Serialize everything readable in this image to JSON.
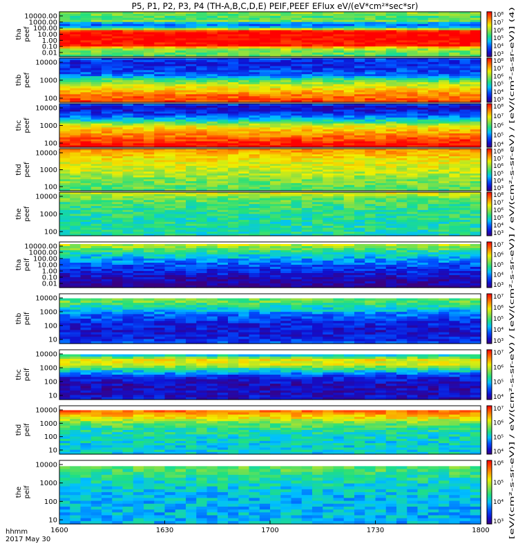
{
  "title": "P5, P1, P2, P3, P4 (TH-A,B,C,D,E) PEIF,PEEF EFlux eV/(eV*cm²*sec*sr)",
  "footer": {
    "time_label": "hhmm",
    "date_label": "2017 May 30"
  },
  "side_label": "[eV/(cm²-s-sr-eV)] / eV/(cm²-s-sr-eV) / [eV/(cm²-s-sr-eV)] / eV/(cm²-s-sr-eV) / [eV/(cm²-s-sr-eV)] (4)",
  "chart_data": [
    {
      "type": "heatmap",
      "panel": "tha peef",
      "ylabel": "tha peef",
      "y_ticks": [
        "10000.00",
        "1000.00",
        "100.00",
        "10.00",
        "1.00",
        "0.10",
        "0.01"
      ],
      "x_ticks": [
        "1600",
        "1630",
        "1700",
        "1730",
        "1800"
      ],
      "colorbar_ticks": [
        "10⁸",
        "10⁷",
        "10⁶",
        "10⁵",
        "10⁴",
        "10³"
      ],
      "profile": [
        [
          0.0,
          6.0
        ],
        [
          0.04,
          5.9
        ],
        [
          0.12,
          5.6
        ],
        [
          0.2,
          5.9
        ],
        [
          0.28,
          4.2
        ],
        [
          0.36,
          5.0
        ],
        [
          0.44,
          8.5
        ],
        [
          0.56,
          8.5
        ],
        [
          0.68,
          8.4
        ],
        [
          0.76,
          8.3
        ],
        [
          0.82,
          6.2
        ],
        [
          0.9,
          5.8
        ],
        [
          1.0,
          5.6
        ]
      ],
      "bg_blank": [
        0,
        0.02
      ]
    },
    {
      "type": "heatmap",
      "panel": "thb peef",
      "ylabel": "thb peef",
      "y_ticks": [
        "10000",
        "1000",
        "100"
      ],
      "x_ticks": [
        "1600",
        "1630",
        "1700",
        "1730",
        "1800"
      ],
      "colorbar_ticks": [
        "10⁸",
        "10⁷",
        "10⁶",
        "10⁵",
        "10⁴",
        "10³"
      ],
      "profile": [
        [
          0.0,
          4.2
        ],
        [
          0.1,
          3.8
        ],
        [
          0.2,
          3.9
        ],
        [
          0.3,
          4.1
        ],
        [
          0.4,
          4.4
        ],
        [
          0.5,
          5.6
        ],
        [
          0.58,
          6.2
        ],
        [
          0.66,
          6.6
        ],
        [
          0.74,
          7.0
        ],
        [
          0.84,
          7.6
        ],
        [
          1.0,
          8.0
        ]
      ]
    },
    {
      "type": "heatmap",
      "panel": "thc peef",
      "ylabel": "thc peef",
      "y_ticks": [
        "10000",
        "1000",
        "100"
      ],
      "x_ticks": [
        "1600",
        "1630",
        "1700",
        "1730",
        "1800"
      ],
      "colorbar_ticks": [
        "10⁸",
        "10⁷",
        "10⁶",
        "10⁵",
        "10⁴"
      ],
      "profile": [
        [
          0.0,
          4.4
        ],
        [
          0.08,
          3.4
        ],
        [
          0.18,
          3.8
        ],
        [
          0.28,
          4.2
        ],
        [
          0.4,
          5.2
        ],
        [
          0.5,
          6.4
        ],
        [
          0.6,
          7.0
        ],
        [
          0.7,
          7.4
        ],
        [
          0.8,
          7.8
        ],
        [
          0.9,
          8.2
        ],
        [
          1.0,
          8.4
        ]
      ]
    },
    {
      "type": "heatmap",
      "panel": "thd peef",
      "ylabel": "thd peef",
      "y_ticks": [
        "10000",
        "1000",
        "100"
      ],
      "x_ticks": [
        "1600",
        "1630",
        "1700",
        "1730",
        "1800"
      ],
      "colorbar_ticks": [
        "10⁸",
        "10⁷",
        "10⁶",
        "10⁵",
        "10⁴",
        "10³"
      ],
      "profile": [
        [
          0.0,
          7.4
        ],
        [
          0.15,
          7.0
        ],
        [
          0.3,
          6.6
        ],
        [
          0.5,
          6.4
        ],
        [
          0.7,
          6.0
        ],
        [
          0.85,
          5.8
        ],
        [
          1.0,
          5.6
        ]
      ]
    },
    {
      "type": "heatmap",
      "panel": "the peef",
      "ylabel": "the peef",
      "y_ticks": [
        "10000",
        "1000",
        "100"
      ],
      "x_ticks": [
        "1600",
        "1630",
        "1700",
        "1730",
        "1800"
      ],
      "colorbar_ticks": [
        "10⁸",
        "10⁷",
        "10⁶",
        "10⁵",
        "10⁴",
        "10³"
      ],
      "profile": [
        [
          0.0,
          6.6
        ],
        [
          0.1,
          6.0
        ],
        [
          0.25,
          5.6
        ],
        [
          0.45,
          5.4
        ],
        [
          0.65,
          5.3
        ],
        [
          0.85,
          5.3
        ],
        [
          1.0,
          5.2
        ]
      ]
    },
    {
      "type": "heatmap",
      "panel": "tha peif",
      "ylabel": "tha peif",
      "y_ticks": [
        "10000.00",
        "1000.00",
        "100.00",
        "10.00",
        "1.00",
        "0.10",
        "0.01"
      ],
      "x_ticks": [
        "1600",
        "1630",
        "1700",
        "1730",
        "1800"
      ],
      "colorbar_ticks": [
        "10⁷",
        "10⁶",
        "10⁵",
        "10⁴",
        "10³"
      ],
      "profile": [
        [
          0.0,
          6.6
        ],
        [
          0.08,
          6.2
        ],
        [
          0.2,
          5.4
        ],
        [
          0.35,
          4.8
        ],
        [
          0.5,
          4.2
        ],
        [
          0.65,
          3.8
        ],
        [
          0.8,
          3.4
        ],
        [
          0.92,
          3.2
        ],
        [
          1.0,
          3.0
        ]
      ],
      "bg_blank": [
        0,
        0.05
      ]
    },
    {
      "type": "heatmap",
      "panel": "thb peif",
      "ylabel": "thb peif",
      "y_ticks": [
        "10000",
        "1000",
        "100",
        "10"
      ],
      "x_ticks": [
        "1600",
        "1630",
        "1700",
        "1730",
        "1800"
      ],
      "colorbar_ticks": [
        "10⁷",
        "10⁶",
        "10⁵",
        "10⁴",
        "10³"
      ],
      "profile": [
        [
          0.0,
          5.4
        ],
        [
          0.15,
          5.8
        ],
        [
          0.3,
          5.0
        ],
        [
          0.45,
          4.2
        ],
        [
          0.6,
          3.8
        ],
        [
          0.75,
          3.6
        ],
        [
          0.9,
          3.8
        ],
        [
          1.0,
          4.2
        ]
      ],
      "bg_blank": [
        0,
        0.08
      ]
    },
    {
      "type": "heatmap",
      "panel": "thc peif",
      "ylabel": "thc peif",
      "y_ticks": [
        "10000",
        "1000",
        "100",
        "10"
      ],
      "x_ticks": [
        "1600",
        "1630",
        "1700",
        "1730",
        "1800"
      ],
      "colorbar_ticks": [
        "10⁷",
        "10⁶",
        "10⁵",
        "10⁴"
      ],
      "profile": [
        [
          0.0,
          3.8
        ],
        [
          0.1,
          4.8
        ],
        [
          0.2,
          6.6
        ],
        [
          0.3,
          6.4
        ],
        [
          0.42,
          5.0
        ],
        [
          0.55,
          3.8
        ],
        [
          0.7,
          3.4
        ],
        [
          0.85,
          3.4
        ],
        [
          1.0,
          3.6
        ]
      ],
      "bg_blank": [
        0,
        0.08
      ]
    },
    {
      "type": "heatmap",
      "panel": "thd peif",
      "ylabel": "thd peif",
      "y_ticks": [
        "10000",
        "1000",
        "100",
        "10"
      ],
      "x_ticks": [
        "1600",
        "1630",
        "1700",
        "1730",
        "1800"
      ],
      "colorbar_ticks": [
        "10⁷",
        "10⁶",
        "10⁵",
        "10⁴"
      ],
      "profile": [
        [
          0.0,
          7.6
        ],
        [
          0.12,
          7.6
        ],
        [
          0.24,
          6.8
        ],
        [
          0.36,
          5.8
        ],
        [
          0.5,
          5.3
        ],
        [
          0.65,
          5.1
        ],
        [
          0.8,
          5.0
        ],
        [
          1.0,
          5.0
        ]
      ],
      "bg_blank": [
        0,
        0.08
      ]
    },
    {
      "type": "heatmap",
      "panel": "the peif",
      "ylabel": "the peif",
      "y_ticks": [
        "10000",
        "1000",
        "100",
        "10"
      ],
      "x_ticks": [
        "1600",
        "1630",
        "1700",
        "1730",
        "1800"
      ],
      "colorbar_ticks": [
        "10⁶",
        "10⁵",
        "10⁴",
        "10³"
      ],
      "profile": [
        [
          0.0,
          5.8
        ],
        [
          0.15,
          5.6
        ],
        [
          0.3,
          5.2
        ],
        [
          0.5,
          4.9
        ],
        [
          0.7,
          4.8
        ],
        [
          0.85,
          4.8
        ],
        [
          1.0,
          4.8
        ]
      ],
      "bg_blank": [
        0,
        0.08
      ]
    }
  ]
}
